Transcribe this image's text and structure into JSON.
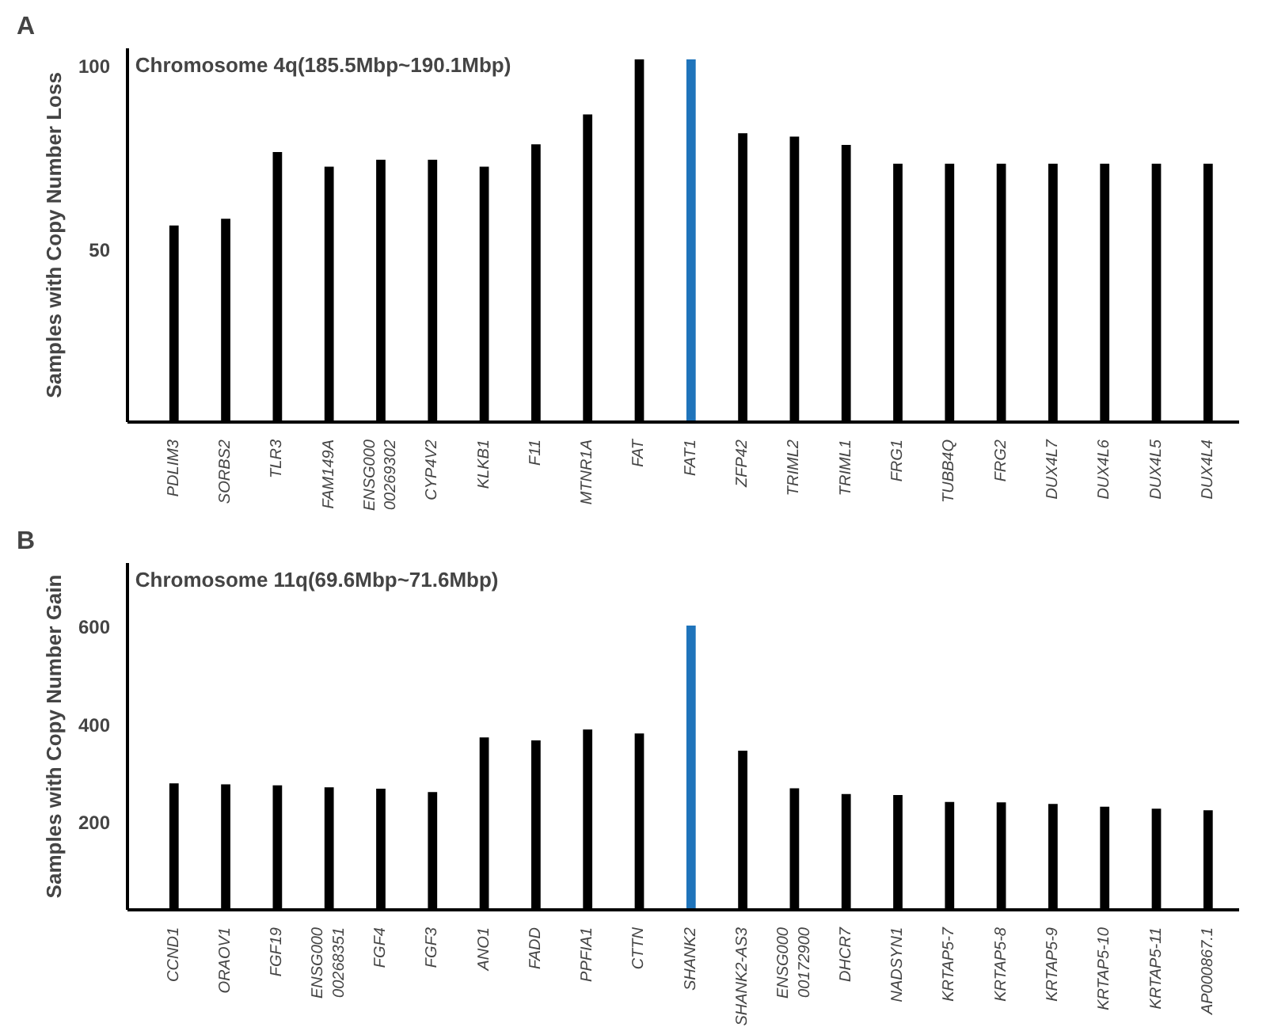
{
  "chart_data": [
    {
      "type": "bar",
      "title": "Chromosome 4q(185.5Mbp~190.1Mbp)",
      "ylabel": "Samples with Copy Number Loss",
      "annotations": [
        "A"
      ],
      "categories": [
        "PDLIM3",
        "SORBS2",
        "TLR3",
        "FAM149A",
        "ENSG000\n00269302",
        "CYP4V2",
        "KLKB1",
        "F11",
        "MTNR1A",
        "FAT",
        "FAT1",
        "ZFP42",
        "TRIML2",
        "TRIML1",
        "FRG1",
        "TUBB4Q",
        "FRG2",
        "DUX4L7",
        "DUX4L6",
        "DUX4L5",
        "DUX4L4"
      ],
      "values": [
        56.5,
        58.3,
        76.5,
        72.5,
        74.4,
        74.4,
        72.5,
        78.6,
        86.7,
        101.7,
        101.7,
        81.6,
        80.7,
        78.4,
        73.3,
        73.3,
        73.3,
        73.3,
        73.3,
        73.3,
        73.3
      ],
      "colors": [
        "#000000",
        "#000000",
        "#000000",
        "#000000",
        "#000000",
        "#000000",
        "#000000",
        "#000000",
        "#000000",
        "#000000",
        "#1f74bb",
        "#000000",
        "#000000",
        "#000000",
        "#000000",
        "#000000",
        "#000000",
        "#000000",
        "#000000",
        "#000000",
        "#000000"
      ],
      "ylim": [
        3,
        104.7
      ],
      "yticks": [
        50,
        100
      ]
    },
    {
      "type": "bar",
      "title": "Chromosome 11q(69.6Mbp~71.6Mbp)",
      "ylabel": "Samples with Copy Number Gain",
      "annotations": [
        "B"
      ],
      "categories": [
        "CCND1",
        "ORAOV1",
        "FGF19",
        "ENSG000\n00268351",
        "FGF4",
        "FGF3",
        "ANO1",
        "FADD",
        "PPFIA1",
        "CTTN",
        "SHANK2",
        "SHANK2-AS3",
        "ENSG000\n00172900",
        "DHCR7",
        "NADSYN1",
        "KRTAP5-7",
        "KRTAP5-8",
        "KRTAP5-9",
        "KRTAP5-10",
        "KRTAP5-11",
        "AP000867.1"
      ],
      "values": [
        279,
        277,
        275,
        271,
        268,
        261,
        373,
        367,
        389,
        381,
        602,
        346,
        269,
        257,
        255,
        241,
        240,
        237,
        231,
        227,
        224
      ],
      "colors": [
        "#000000",
        "#000000",
        "#000000",
        "#000000",
        "#000000",
        "#000000",
        "#000000",
        "#000000",
        "#000000",
        "#000000",
        "#1f74bb",
        "#000000",
        "#000000",
        "#000000",
        "#000000",
        "#000000",
        "#000000",
        "#000000",
        "#000000",
        "#000000",
        "#000000"
      ],
      "ylim": [
        20,
        730
      ],
      "yticks": [
        200,
        400,
        600
      ]
    }
  ]
}
